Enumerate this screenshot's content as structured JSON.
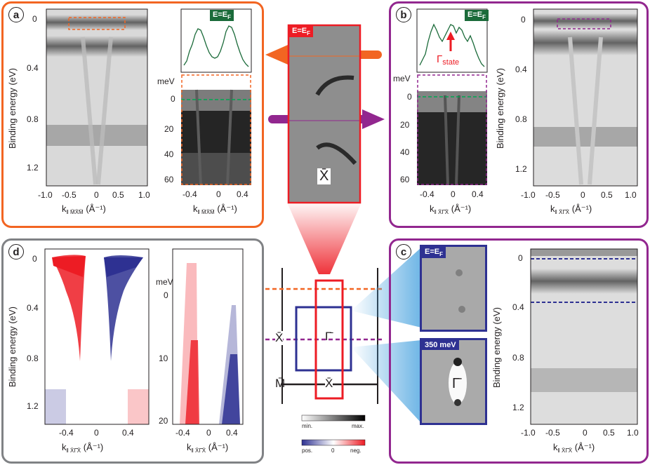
{
  "panels": {
    "a": {
      "letter": "a",
      "ylabel": "Binding energy (eV)",
      "yticks": [
        "0",
        "0.4",
        "0.8",
        "1.2"
      ],
      "xticks": [
        "-1.0",
        "-0.5",
        "0",
        "0.5",
        "1.0"
      ],
      "xlabel_prefix": "k",
      "xlabel_sub": "‖ M̄X̄M̄",
      "xlabel_unit": "(Å⁻¹)",
      "mdc_tag": "E=E",
      "mdc_tag_sub": "F",
      "zoom_unit": "meV",
      "zoom_yticks": [
        "0",
        "20",
        "40",
        "60"
      ],
      "zoom_xticks": [
        "-0.4",
        "0",
        "0.4"
      ],
      "zoom_xlabel_sub": "‖ M̄X̄M̄",
      "zoom_xlabel_unit": "(Å⁻¹)"
    },
    "b": {
      "letter": "b",
      "ylabel": "Binding energy (eV)",
      "yticks": [
        "0",
        "0.4",
        "0.8",
        "1.2"
      ],
      "xticks": [
        "-1.0",
        "-0.5",
        "0",
        "0.5",
        "1.0"
      ],
      "xlabel_prefix": "k",
      "xlabel_sub": "‖ X̄Γ̄X̄",
      "xlabel_unit": "(Å⁻¹)",
      "mdc_tag": "E=E",
      "mdc_tag_sub": "F",
      "state_label": "Γ",
      "state_sub": "state",
      "zoom_unit": "meV",
      "zoom_yticks": [
        "0",
        "20",
        "40",
        "60"
      ],
      "zoom_xticks": [
        "-0.4",
        "0",
        "0.4"
      ],
      "zoom_xlabel_sub": "‖ X̄Γ̄X̄",
      "zoom_xlabel_unit": "(Å⁻¹)"
    },
    "center": {
      "fermi_tag": "E=E",
      "fermi_sub": "F",
      "point_label": "X̄"
    },
    "c": {
      "letter": "c",
      "fermi_tag": "E=E",
      "fermi_sub": "F",
      "energy_tag": "350 meV",
      "point_label": "Γ̄",
      "ylabel": "Binding energy (eV)",
      "yticks": [
        "0",
        "0.4",
        "0.8",
        "1.2"
      ],
      "xticks": [
        "-1.0",
        "-0.5",
        "0",
        "0.5",
        "1.0"
      ],
      "xlabel_sub": "‖ X̄Γ̄X̄",
      "xlabel_unit": "(Å⁻¹)"
    },
    "d": {
      "letter": "d",
      "ylabel": "Binding energy (eV)",
      "yticks": [
        "0",
        "0.4",
        "0.8",
        "1.2"
      ],
      "xticks": [
        "-0.4",
        "0",
        "0.4"
      ],
      "xlabel_sub": "‖ X̄Γ̄X̄",
      "xlabel_unit": "(Å⁻¹)",
      "zoom_unit": "meV",
      "zoom_yticks": [
        "0",
        "10",
        "20"
      ],
      "zoom_xticks": [
        "-0.4",
        "0",
        "0.4"
      ]
    }
  },
  "bz": {
    "label_x_left": "X̄",
    "label_m": "M̄",
    "label_gamma": "Γ̄",
    "label_x_bottom": "X̄"
  },
  "legend": {
    "gray_min": "min.",
    "gray_max": "max.",
    "color_pos": "pos.",
    "color_zero": "0",
    "color_neg": "neg."
  },
  "colors": {
    "orange": "#f26522",
    "purple": "#92278f",
    "gray": "#808285",
    "red": "#ed1c24",
    "blue": "#2e3192",
    "green_tag": "#1b6b3a"
  }
}
